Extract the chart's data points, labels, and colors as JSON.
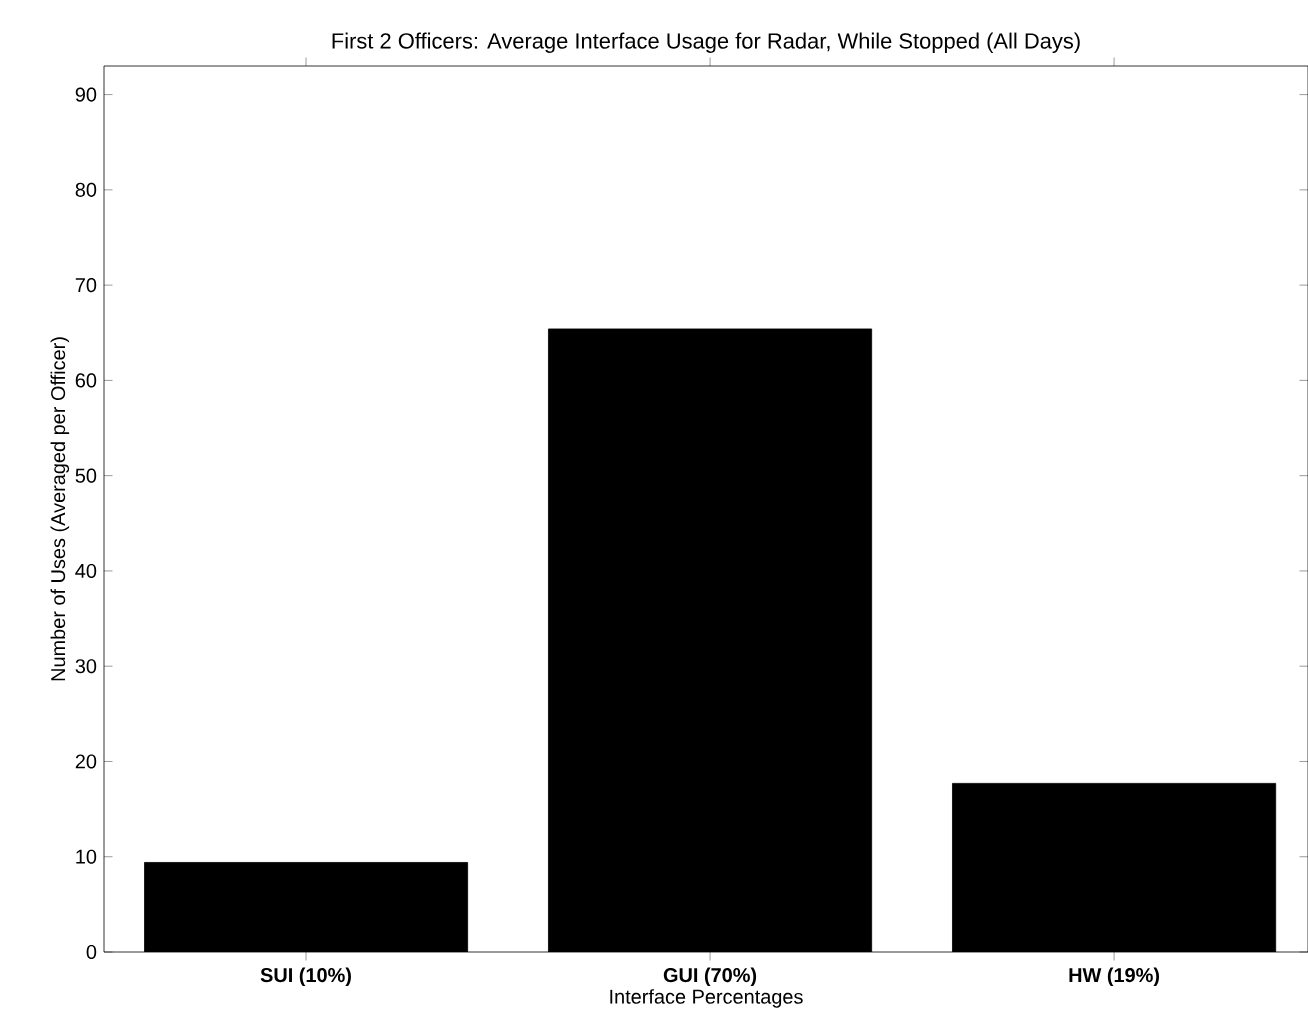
{
  "chart_data": {
    "type": "bar",
    "title": "First 2 Officers: Average Interface Usage for Radar, While Stopped (All Days)",
    "xlabel": "Interface Percentages",
    "ylabel": "Number of Uses (Averaged per Officer)",
    "categories": [
      "SUI (10%)",
      "GUI (70%)",
      "HW (19%)"
    ],
    "values": [
      9.4,
      65.4,
      17.7
    ],
    "color": "#000000",
    "ylim": [
      0,
      93
    ],
    "yticks": [
      0,
      10,
      20,
      30,
      40,
      50,
      60,
      70,
      80,
      90
    ],
    "grid": false
  }
}
